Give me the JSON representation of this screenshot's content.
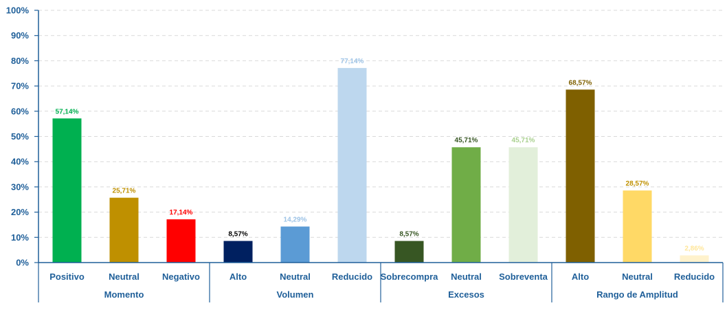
{
  "chart_data": {
    "type": "bar",
    "title": "",
    "xlabel": "",
    "ylabel": "",
    "ylim": [
      0,
      100
    ],
    "y_tick_labels": [
      "0%",
      "10%",
      "20%",
      "30%",
      "40%",
      "50%",
      "60%",
      "70%",
      "80%",
      "90%",
      "100%"
    ],
    "grid": true,
    "legend": "none",
    "groups": [
      {
        "name": "Momento",
        "categories": [
          "Positivo",
          "Neutral",
          "Negativo"
        ],
        "values": [
          57.14,
          25.71,
          17.14
        ],
        "labels": [
          "57,14%",
          "25,71%",
          "17,14%"
        ],
        "colors": [
          "#00b050",
          "#bf9000",
          "#ff0000"
        ]
      },
      {
        "name": "Volumen",
        "categories": [
          "Alto",
          "Neutral",
          "Reducido"
        ],
        "values": [
          8.57,
          14.29,
          77.14
        ],
        "labels": [
          "8,57%",
          "14,29%",
          "77,14%"
        ],
        "colors": [
          "#002060",
          "#5b9bd5",
          "#bdd7ee"
        ]
      },
      {
        "name": "Excesos",
        "categories": [
          "Sobrecompra",
          "Neutral",
          "Sobreventa"
        ],
        "values": [
          8.57,
          45.71,
          45.71
        ],
        "labels": [
          "8,57%",
          "45,71%",
          "45,71%"
        ],
        "colors": [
          "#375623",
          "#70ad47",
          "#e2efda"
        ]
      },
      {
        "name": "Rango de Amplitud",
        "categories": [
          "Alto",
          "Neutral",
          "Reducido"
        ],
        "values": [
          68.57,
          28.57,
          2.86
        ],
        "labels": [
          "68,57%",
          "28,57%",
          "2,86%"
        ],
        "colors": [
          "#7f6000",
          "#ffd966",
          "#fff2cc"
        ]
      }
    ],
    "label_colors": [
      [
        "#00b050",
        "#bf9000",
        "#ff0000"
      ],
      [
        "#000000",
        "#9dc3e6",
        "#9dc3e6"
      ],
      [
        "#375623",
        "#375623",
        "#a9d08e"
      ],
      [
        "#7f6000",
        "#bf9000",
        "#ffe699"
      ]
    ],
    "axis_color": "#1f5f99"
  }
}
